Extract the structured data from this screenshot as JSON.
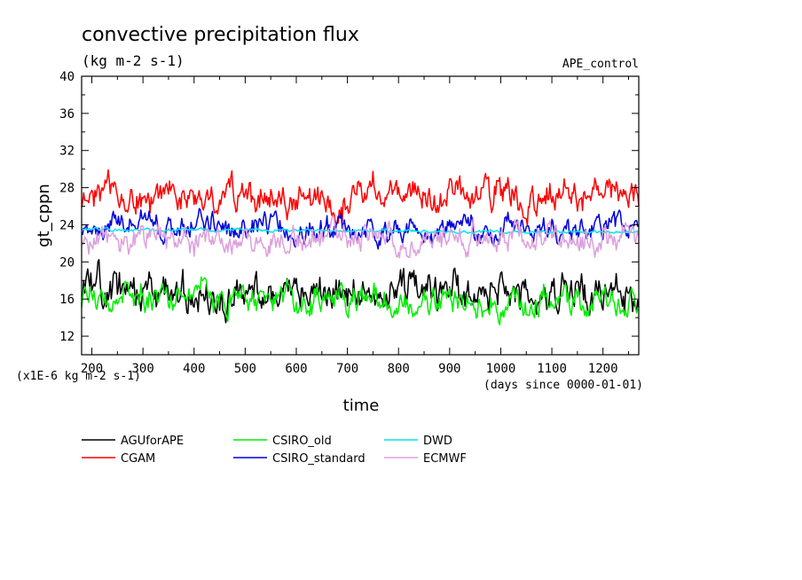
{
  "chart_data": {
    "type": "line",
    "title": "convective precipitation flux",
    "units": "(kg m-2 s-1)",
    "experiment": "APE_control",
    "ylabel": "gt_cppn",
    "xlabel": "time",
    "x_units_note": "(days since 0000-01-01)",
    "y_scale_note": "(x1E-6 kg m-2 s-1)",
    "xlim": [
      180,
      1270
    ],
    "ylim": [
      10,
      40
    ],
    "x_ticks": [
      200,
      300,
      400,
      500,
      600,
      700,
      800,
      900,
      1000,
      1100,
      1200
    ],
    "x_tick_labels": [
      "200",
      "300",
      "400",
      "500",
      "600",
      "700",
      "800",
      "900",
      "1000",
      "1100",
      "1200"
    ],
    "y_ticks": [
      12,
      16,
      20,
      24,
      28,
      32,
      36,
      40
    ],
    "y_tick_labels": [
      "12",
      "16",
      "20",
      "24",
      "28",
      "32",
      "36",
      "40"
    ],
    "series": [
      {
        "name": "AGUforAPE",
        "color": "#000000",
        "mean": 16.6,
        "amplitude": 3.0,
        "seed": 11,
        "x": [
          180,
          1270
        ],
        "values": [
          16.6,
          16.6
        ]
      },
      {
        "name": "CGAM",
        "color": "#ff0000",
        "mean": 27.0,
        "amplitude": 2.6,
        "seed": 23,
        "x": [
          180,
          1270
        ],
        "values": [
          27.0,
          27.0
        ]
      },
      {
        "name": "CSIRO_old",
        "color": "#00ee00",
        "mean": 16.0,
        "amplitude": 2.4,
        "seed": 37,
        "x": [
          180,
          1270
        ],
        "values": [
          16.0,
          16.0
        ]
      },
      {
        "name": "CSIRO_standard",
        "color": "#0000dd",
        "mean": 23.6,
        "amplitude": 2.0,
        "seed": 41,
        "x": [
          180,
          1270
        ],
        "values": [
          23.6,
          23.6
        ]
      },
      {
        "name": "DWD",
        "color": "#00e5ee",
        "mean": 23.5,
        "amplitude": 0.25,
        "seed": 53,
        "x": [
          180,
          1270
        ],
        "values": [
          23.5,
          23.2
        ]
      },
      {
        "name": "ECMWF",
        "color": "#dda0dd",
        "mean": 22.3,
        "amplitude": 2.2,
        "seed": 67,
        "x": [
          180,
          1270
        ],
        "values": [
          22.3,
          22.3
        ]
      }
    ]
  }
}
